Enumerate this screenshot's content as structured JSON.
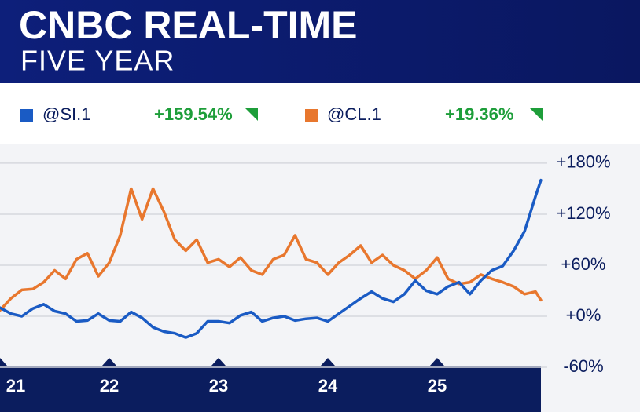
{
  "chart_data": {
    "type": "line",
    "title": "CNBC REAL-TIME",
    "subtitle": "FIVE YEAR",
    "x": [
      2021.0,
      2021.1,
      2021.2,
      2021.3,
      2021.4,
      2021.5,
      2021.6,
      2021.7,
      2021.8,
      2021.9,
      2022.0,
      2022.1,
      2022.2,
      2022.3,
      2022.4,
      2022.5,
      2022.6,
      2022.7,
      2022.8,
      2022.9,
      2023.0,
      2023.1,
      2023.2,
      2023.3,
      2023.4,
      2023.5,
      2023.6,
      2023.7,
      2023.8,
      2023.9,
      2024.0,
      2024.1,
      2024.2,
      2024.3,
      2024.4,
      2024.5,
      2024.6,
      2024.7,
      2024.8,
      2024.9,
      2025.0,
      2025.1,
      2025.2,
      2025.3,
      2025.4,
      2025.5,
      2025.6,
      2025.7,
      2025.8,
      2025.9,
      2025.95
    ],
    "series": [
      {
        "name": "@SI.1",
        "color": "#1a5bc4",
        "change_label": "+159.54%",
        "values": [
          10,
          3,
          0,
          9,
          14,
          6,
          3,
          -6,
          -5,
          3,
          -5,
          -6,
          5,
          -2,
          -13,
          -18,
          -20,
          -25,
          -20,
          -6,
          -6,
          -8,
          1,
          5,
          -6,
          -2,
          0,
          -5,
          -3,
          -2,
          -6,
          3,
          12,
          21,
          29,
          21,
          17,
          26,
          42,
          30,
          26,
          35,
          40,
          26,
          42,
          54,
          59,
          77,
          100,
          141,
          160
        ]
      },
      {
        "name": "@CL.1",
        "color": "#e8772e",
        "change_label": "+19.36%",
        "values": [
          7,
          21,
          31,
          32,
          40,
          54,
          44,
          67,
          74,
          47,
          63,
          95,
          150,
          114,
          150,
          123,
          90,
          77,
          90,
          63,
          67,
          58,
          69,
          54,
          49,
          67,
          72,
          95,
          67,
          63,
          49,
          63,
          72,
          83,
          63,
          72,
          60,
          54,
          44,
          54,
          69,
          44,
          38,
          40,
          49,
          44,
          40,
          35,
          26,
          29,
          19
        ]
      }
    ],
    "xlim": [
      2021,
      2025.95
    ],
    "xticks": [
      {
        "value": 2021,
        "label": "21"
      },
      {
        "value": 2022,
        "label": "22"
      },
      {
        "value": 2023,
        "label": "23"
      },
      {
        "value": 2024,
        "label": "24"
      },
      {
        "value": 2025,
        "label": "25"
      }
    ],
    "ylim": [
      -60,
      203
    ],
    "yticks": [
      {
        "value": -60,
        "label": "-60%"
      },
      {
        "value": 0,
        "label": "+0%"
      },
      {
        "value": 60,
        "label": "+60%"
      },
      {
        "value": 120,
        "label": "+120%"
      },
      {
        "value": 180,
        "label": "+180%"
      }
    ],
    "grid": true,
    "change_color": "#1e9e3a"
  }
}
